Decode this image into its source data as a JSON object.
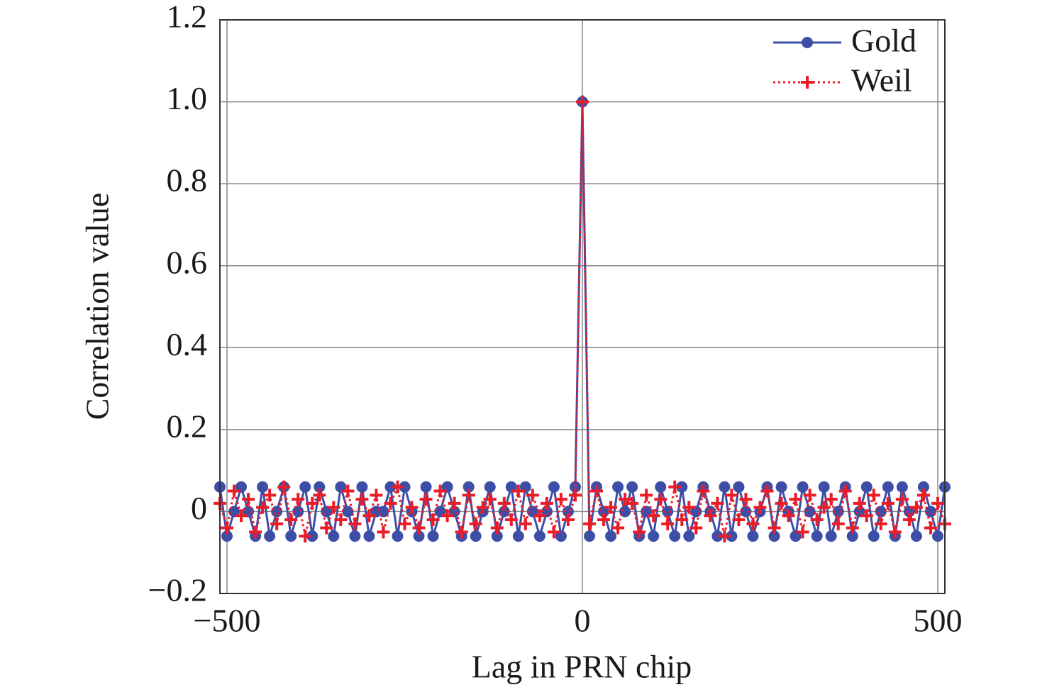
{
  "chart_data": {
    "type": "line",
    "xlabel": "Lag in PRN chip",
    "ylabel": "Correlation value",
    "x": [
      -510,
      -500,
      -490,
      -480,
      -470,
      -460,
      -450,
      -440,
      -430,
      -420,
      -410,
      -400,
      -390,
      -380,
      -370,
      -360,
      -350,
      -340,
      -330,
      -320,
      -310,
      -300,
      -290,
      -280,
      -270,
      -260,
      -250,
      -240,
      -230,
      -220,
      -210,
      -200,
      -190,
      -180,
      -170,
      -160,
      -150,
      -140,
      -130,
      -120,
      -110,
      -100,
      -90,
      -80,
      -70,
      -60,
      -50,
      -40,
      -30,
      -20,
      -10,
      0,
      10,
      20,
      30,
      40,
      50,
      60,
      70,
      80,
      90,
      100,
      110,
      120,
      130,
      140,
      150,
      160,
      170,
      180,
      190,
      200,
      210,
      220,
      230,
      240,
      250,
      260,
      270,
      280,
      290,
      300,
      310,
      320,
      330,
      340,
      350,
      360,
      370,
      380,
      390,
      400,
      410,
      420,
      430,
      440,
      450,
      460,
      470,
      480,
      490,
      500,
      510
    ],
    "series": [
      {
        "name": "Gold",
        "color": "#3d4ea6",
        "line": "solid",
        "marker": "circle",
        "values": [
          0.06,
          -0.06,
          0,
          0.06,
          0,
          -0.06,
          0.06,
          -0.06,
          0,
          0.06,
          -0.06,
          0,
          0.06,
          -0.06,
          0.06,
          0,
          -0.06,
          0.06,
          0,
          -0.06,
          0.06,
          -0.06,
          0,
          0,
          0.06,
          -0.06,
          0.06,
          0,
          -0.06,
          0.06,
          -0.06,
          0,
          0.06,
          0,
          -0.06,
          0.06,
          -0.06,
          0,
          0.06,
          -0.06,
          0,
          0.06,
          -0.06,
          0.06,
          0,
          -0.06,
          0,
          0.06,
          -0.06,
          0,
          0.06,
          1,
          -0.06,
          0.06,
          0,
          -0.06,
          0.06,
          0,
          0.06,
          -0.06,
          0,
          -0.06,
          0.06,
          0,
          -0.06,
          0.06,
          -0.06,
          0,
          0.06,
          0,
          -0.06,
          0.06,
          -0.06,
          0.06,
          0,
          -0.06,
          0,
          0.06,
          -0.06,
          0.06,
          0,
          -0.06,
          0.06,
          0,
          -0.06,
          0.06,
          -0.06,
          0,
          0.06,
          -0.06,
          0,
          0.06,
          -0.06,
          0,
          0.06,
          -0.06,
          0.06,
          0,
          -0.06,
          0.06,
          0,
          -0.06,
          0.06
        ]
      },
      {
        "name": "Weil",
        "color": "#ea1c28",
        "line": "dotted",
        "marker": "plus",
        "values": [
          0.02,
          -0.04,
          0.05,
          -0.01,
          0.03,
          -0.05,
          0.01,
          0.04,
          -0.03,
          0.06,
          -0.02,
          0.03,
          -0.06,
          0.02,
          0.04,
          -0.04,
          0.01,
          -0.02,
          0.05,
          -0.03,
          0.03,
          -0.01,
          0.04,
          -0.05,
          0.02,
          0.06,
          -0.03,
          0.01,
          -0.04,
          0.03,
          -0.02,
          0.05,
          -0.01,
          0.02,
          -0.05,
          0.04,
          -0.03,
          0.01,
          0.03,
          -0.04,
          0.02,
          -0.02,
          0.05,
          -0.03,
          0.04,
          -0.01,
          0.02,
          -0.05,
          0.03,
          -0.02,
          0.04,
          1,
          -0.03,
          0.05,
          -0.02,
          0.01,
          -0.04,
          0.03,
          0.02,
          -0.05,
          0.04,
          -0.01,
          0.03,
          -0.03,
          0.06,
          -0.02,
          0.01,
          -0.04,
          0.05,
          -0.01,
          0.02,
          -0.06,
          0.04,
          -0.02,
          0.03,
          -0.03,
          0.01,
          0.05,
          -0.04,
          0.02,
          -0.01,
          0.03,
          -0.05,
          0.04,
          -0.02,
          0.01,
          0.03,
          -0.03,
          0.05,
          -0.04,
          0.02,
          -0.01,
          0.04,
          -0.03,
          0.02,
          -0.05,
          0.03,
          -0.02,
          0.01,
          0.04,
          -0.04,
          0.02,
          -0.03
        ]
      }
    ],
    "xlim": [
      -510,
      510
    ],
    "xticks": [
      {
        "value": -500,
        "label": "−500"
      },
      0,
      500
    ],
    "ylim": [
      -0.2,
      1.2
    ],
    "yticks": [
      {
        "value": -0.2,
        "label": "−0.2"
      },
      0,
      0.2,
      0.4,
      0.6,
      0.8,
      {
        "value": 1.0,
        "label": "1.0"
      },
      1.2
    ],
    "grid": true,
    "legend": "upper right"
  }
}
